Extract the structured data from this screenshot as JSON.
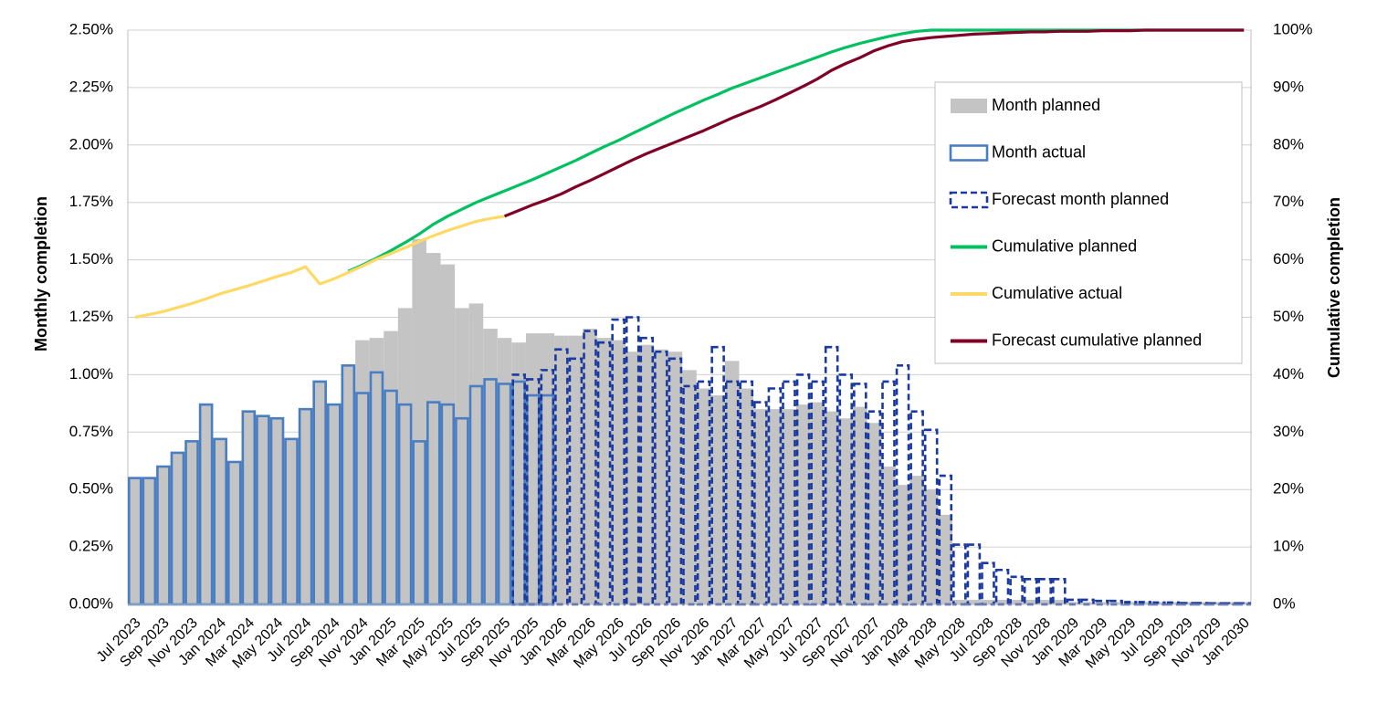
{
  "chart_data": {
    "type": "combo",
    "y_label": "Monthly completion",
    "y2_label": "Cumulative completion",
    "categories": [
      "Jul 2023",
      null,
      "Sep 2023",
      null,
      "Nov 2023",
      null,
      "Jan 2024",
      null,
      "Mar 2024",
      null,
      "May 2024",
      null,
      "Jul 2024",
      null,
      "Sep 2024",
      null,
      "Nov 2024",
      null,
      "Jan 2025",
      null,
      "Mar 2025",
      null,
      "May 2025",
      null,
      "Jul 2025",
      null,
      "Sep 2025",
      null,
      "Nov 2025",
      null,
      "Jan 2026",
      null,
      "Mar 2026",
      null,
      "May 2026",
      null,
      "Jul 2026",
      null,
      "Sep 2026",
      null,
      "Nov 2026",
      null,
      "Jan 2027",
      null,
      "Mar 2027",
      null,
      "May 2027",
      null,
      "Jul 2027",
      null,
      "Sep 2027",
      null,
      "Nov 2027",
      null,
      "Jan 2028",
      null,
      "Mar 2028",
      null,
      "May 2028",
      null,
      "Jul 2028",
      null,
      "Sep 2028",
      null,
      "Nov 2028",
      null,
      "Jan 2029",
      null,
      "Mar 2029",
      null,
      "May 2029",
      null,
      "Jul 2029",
      null,
      "Sep 2029",
      null,
      "Nov 2029",
      null,
      "Jan 2030"
    ],
    "ylim": [
      0,
      2.5
    ],
    "yticks": [
      {
        "value": 0,
        "label": "0.00%"
      },
      {
        "value": 0.25,
        "label": "0.25%"
      },
      {
        "value": 0.5,
        "label": "0.50%"
      },
      {
        "value": 0.75,
        "label": "0.75%"
      },
      {
        "value": 1,
        "label": "1.00%"
      },
      {
        "value": 1.25,
        "label": "1.25%"
      },
      {
        "value": 1.5,
        "label": "1.50%"
      },
      {
        "value": 1.75,
        "label": "1.75%"
      },
      {
        "value": 2,
        "label": "2.00%"
      },
      {
        "value": 2.25,
        "label": "2.25%"
      },
      {
        "value": 2.5,
        "label": "2.50%"
      }
    ],
    "y2lim": [
      0,
      100
    ],
    "y2ticks": [
      {
        "value": 0,
        "label": "0%"
      },
      {
        "value": 10,
        "label": "10%"
      },
      {
        "value": 20,
        "label": "20%"
      },
      {
        "value": 30,
        "label": "30%"
      },
      {
        "value": 40,
        "label": "40%"
      },
      {
        "value": 50,
        "label": "50%"
      },
      {
        "value": 60,
        "label": "60%"
      },
      {
        "value": 70,
        "label": "70%"
      },
      {
        "value": 80,
        "label": "80%"
      },
      {
        "value": 90,
        "label": "90%"
      },
      {
        "value": 100,
        "label": "100%"
      }
    ],
    "grid": true,
    "legend": "upper right",
    "series": [
      {
        "name": "Month planned",
        "type": "bar",
        "fill": true,
        "dashed": false,
        "color": "#c4c4c4",
        "values": [
          0.55,
          0.55,
          0.6,
          0.66,
          0.71,
          0.87,
          0.72,
          0.62,
          0.84,
          0.82,
          0.81,
          0.72,
          0.85,
          0.97,
          0.87,
          1.04,
          1.15,
          1.16,
          1.19,
          1.29,
          1.59,
          1.53,
          1.48,
          1.29,
          1.31,
          1.2,
          1.16,
          1.14,
          1.18,
          1.18,
          1.17,
          1.17,
          1.2,
          1.16,
          1.15,
          1.1,
          1.13,
          1.11,
          1.1,
          1.02,
          0.94,
          0.91,
          1.06,
          0.94,
          0.85,
          0.85,
          0.85,
          0.87,
          0.88,
          0.84,
          0.81,
          0.86,
          0.79,
          0.6,
          0.52,
          0.56,
          0.5,
          0.39,
          0.02,
          0.02,
          0.02,
          0.02,
          0.02,
          0.02,
          0.02,
          0.02,
          0.01,
          0.01,
          0.01,
          0.01,
          0.01,
          0.01,
          0.01,
          0.01,
          0.01,
          0.01,
          0.01,
          0.01,
          0.01
        ]
      },
      {
        "name": "Month actual",
        "type": "bar",
        "fill": false,
        "dashed": false,
        "color": "#4a7ec2",
        "values": [
          0.55,
          0.55,
          0.6,
          0.66,
          0.71,
          0.87,
          0.72,
          0.62,
          0.84,
          0.82,
          0.81,
          0.72,
          0.85,
          0.97,
          0.87,
          1.04,
          0.92,
          1.01,
          0.93,
          0.87,
          0.71,
          0.88,
          0.87,
          0.81,
          0.95,
          0.98,
          0.96,
          0.97,
          0.91,
          0.91,
          null,
          null,
          null,
          null,
          null,
          null,
          null,
          null,
          null,
          null,
          null,
          null,
          null,
          null,
          null,
          null,
          null,
          null,
          null,
          null,
          null,
          null,
          null,
          null,
          null,
          null,
          null,
          null,
          null,
          null,
          null,
          null,
          null,
          null,
          null,
          null,
          null,
          null,
          null,
          null,
          null,
          null,
          null,
          null,
          null,
          null,
          null,
          null,
          null
        ]
      },
      {
        "name": "Forecast month planned",
        "type": "bar",
        "fill": false,
        "dashed": true,
        "color": "#1a3aa0",
        "values": [
          null,
          null,
          null,
          null,
          null,
          null,
          null,
          null,
          null,
          null,
          null,
          null,
          null,
          null,
          null,
          null,
          null,
          null,
          null,
          null,
          null,
          null,
          null,
          null,
          null,
          null,
          null,
          1.0,
          0.98,
          1.02,
          1.11,
          1.07,
          1.19,
          1.14,
          1.24,
          1.25,
          1.16,
          1.1,
          1.07,
          0.95,
          0.97,
          1.12,
          0.97,
          0.97,
          0.88,
          0.94,
          0.97,
          1.0,
          0.97,
          1.12,
          1.0,
          0.96,
          0.84,
          0.97,
          1.04,
          0.84,
          0.76,
          0.56,
          0.26,
          0.26,
          0.18,
          0.15,
          0.12,
          0.11,
          0.11,
          0.11,
          0.02,
          0.02,
          0.015,
          0.015,
          0.01,
          0.01,
          0.008,
          0.008,
          0.006,
          0.006,
          0.005,
          0.005,
          0.005
        ]
      },
      {
        "name": "Cumulative planned",
        "type": "line",
        "axis": "y2",
        "color": "#00c060",
        "values": [
          null,
          null,
          null,
          null,
          null,
          null,
          null,
          null,
          null,
          null,
          null,
          null,
          null,
          null,
          null,
          58.0,
          59.1,
          60.3,
          61.6,
          63.0,
          64.5,
          66.2,
          67.6,
          68.8,
          70.0,
          71.0,
          72.0,
          73.0,
          74.0,
          75.1,
          76.2,
          77.3,
          78.5,
          79.7,
          80.8,
          82.0,
          83.2,
          84.4,
          85.6,
          86.7,
          87.8,
          88.8,
          89.9,
          90.8,
          91.7,
          92.6,
          93.5,
          94.4,
          95.3,
          96.2,
          97.0,
          97.7,
          98.3,
          98.9,
          99.4,
          99.8,
          100,
          100,
          100,
          100,
          100,
          100,
          100,
          100,
          100,
          100,
          100,
          100,
          100,
          100,
          100,
          100,
          100,
          100,
          100,
          100,
          100,
          100,
          100
        ]
      },
      {
        "name": "Cumulative actual",
        "type": "line",
        "axis": "y2",
        "color": "#ffd966",
        "values": [
          50.0,
          50.5,
          51.0,
          51.7,
          52.4,
          53.2,
          54.1,
          54.8,
          55.5,
          56.3,
          57.1,
          57.8,
          58.8,
          55.8,
          56.7,
          57.8,
          58.9,
          60.1,
          61.1,
          62.1,
          63.2,
          64.2,
          65.1,
          65.9,
          66.7,
          67.2,
          67.6,
          null,
          null,
          null,
          null,
          null,
          null,
          null,
          null,
          null,
          null,
          null,
          null,
          null,
          null,
          null,
          null,
          null,
          null,
          null,
          null,
          null,
          null,
          null,
          null,
          null,
          null,
          null,
          null,
          null,
          null,
          null,
          null,
          null,
          null,
          null,
          null,
          null,
          null,
          null,
          null,
          null,
          null,
          null,
          null,
          null,
          null,
          null,
          null,
          null,
          null,
          null,
          null
        ]
      },
      {
        "name": "Forecast cumulative planned",
        "type": "line",
        "axis": "y2",
        "color": "#800026",
        "values": [
          null,
          null,
          null,
          null,
          null,
          null,
          null,
          null,
          null,
          null,
          null,
          null,
          null,
          null,
          null,
          null,
          null,
          null,
          null,
          null,
          null,
          null,
          null,
          null,
          null,
          null,
          67.6,
          68.6,
          69.6,
          70.5,
          71.5,
          72.7,
          73.8,
          75.0,
          76.2,
          77.4,
          78.5,
          79.5,
          80.5,
          81.5,
          82.5,
          83.6,
          84.7,
          85.7,
          86.7,
          87.8,
          89.0,
          90.2,
          91.5,
          93.0,
          94.2,
          95.2,
          96.4,
          97.3,
          98.0,
          98.4,
          98.7,
          98.9,
          99.1,
          99.3,
          99.4,
          99.5,
          99.6,
          99.7,
          99.7,
          99.8,
          99.8,
          99.8,
          99.9,
          99.9,
          99.9,
          100,
          100,
          100,
          100,
          100,
          100,
          100,
          100
        ]
      }
    ]
  }
}
